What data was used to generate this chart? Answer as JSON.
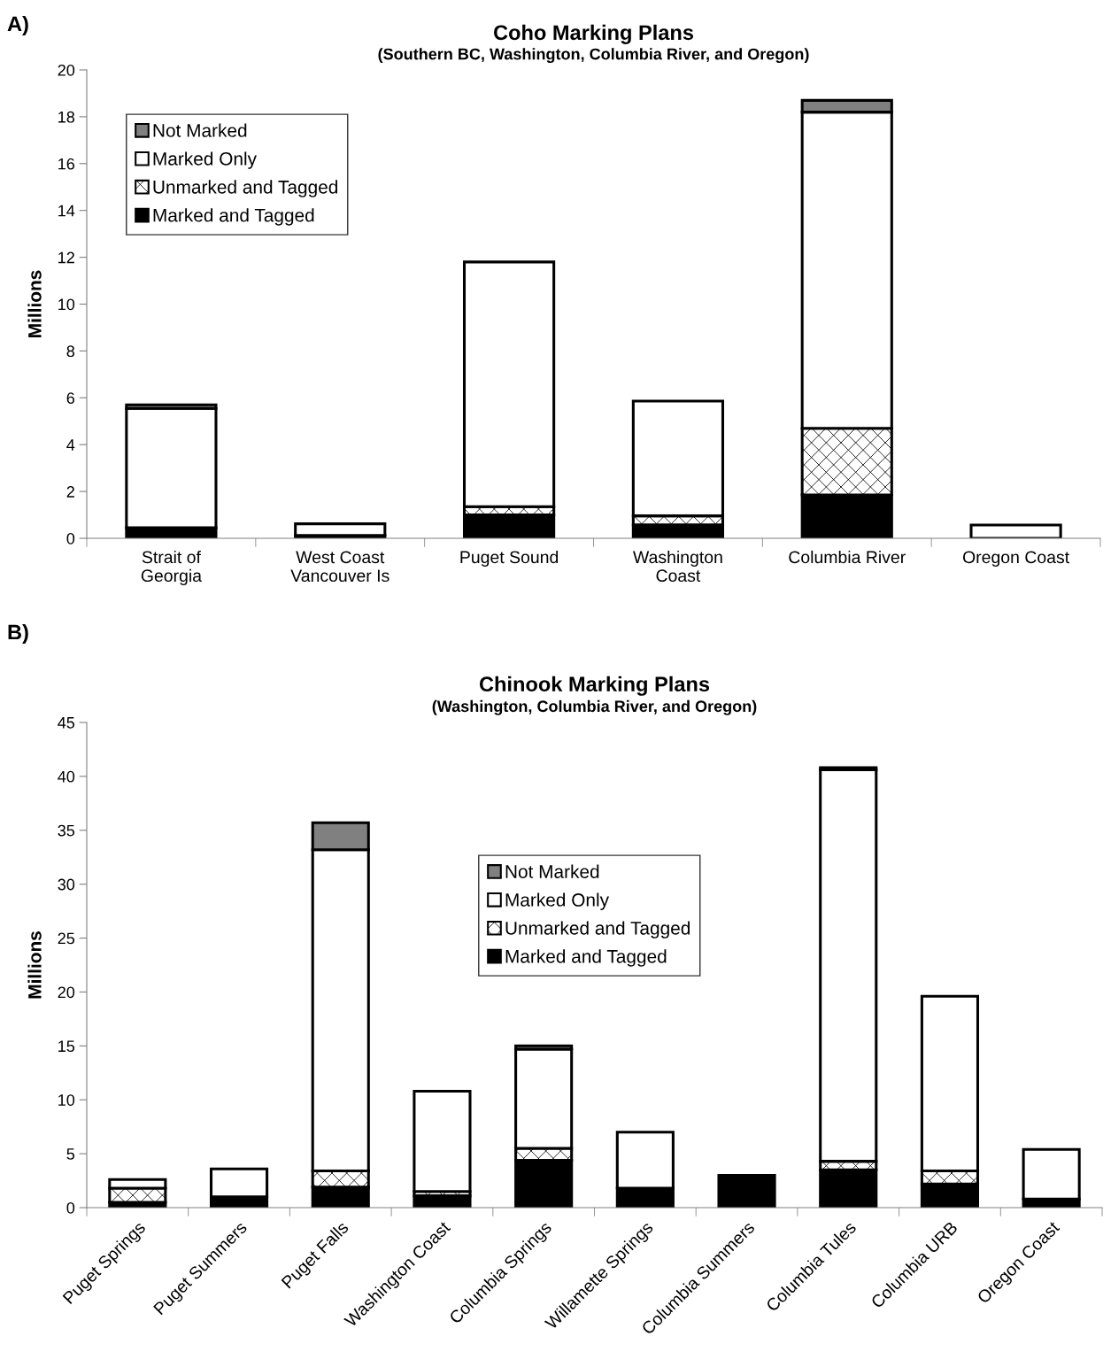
{
  "chart_data": [
    {
      "type": "bar",
      "title": "Coho Marking Plans",
      "subtitle": "(Southern BC, Washington, Columbia River, and Oregon)",
      "ylabel": "Millions",
      "annotations": [
        "A)"
      ],
      "categories": [
        "Strait of\nGeorgia",
        "West Coast\nVancouver Is",
        "Puget Sound",
        "Washington\nCoast",
        "Columbia River",
        "Oregon Coast"
      ],
      "stacked": true,
      "ylim": [
        0,
        20
      ],
      "yticks": [
        0,
        2,
        4,
        6,
        8,
        10,
        12,
        14,
        16,
        18,
        20
      ],
      "grid": false,
      "legend": "top left",
      "series": [
        {
          "name": "Marked and Tagged",
          "color": "#000000",
          "values": [
            0.45,
            0.12,
            1.0,
            0.58,
            1.85,
            null
          ]
        },
        {
          "name": "Unmarked and Tagged",
          "color": "#000000",
          "values": [
            null,
            null,
            0.35,
            0.38,
            2.85,
            null
          ]
        },
        {
          "name": "Marked Only",
          "color": "#ffffff",
          "values": [
            5.1,
            0.5,
            10.45,
            4.9,
            13.5,
            0.57
          ]
        },
        {
          "name": "Not Marked",
          "color": "#808080",
          "values": [
            0.15,
            null,
            null,
            null,
            0.5,
            null
          ]
        }
      ]
    },
    {
      "type": "bar",
      "title": "Chinook Marking Plans",
      "subtitle": "(Washington, Columbia River, and Oregon)",
      "ylabel": "Millions",
      "annotations": [
        "B)"
      ],
      "categories": [
        "Puget Springs",
        "Puget Summers",
        "Puget Falls",
        "Washington Coast",
        "Columbia Springs",
        "Willamette Springs",
        "Columbia Summers",
        "Columbia Tules",
        "Columbia URB",
        "Oregon Coast"
      ],
      "stacked": true,
      "ylim": [
        0,
        45
      ],
      "yticks": [
        0,
        5,
        10,
        15,
        20,
        25,
        30,
        35,
        40,
        45
      ],
      "grid": false,
      "legend": "top",
      "series": [
        {
          "name": "Marked and Tagged",
          "color": "#000000",
          "values": [
            0.5,
            1.0,
            1.9,
            1.1,
            4.4,
            1.8,
            3.0,
            3.5,
            2.2,
            0.8
          ]
        },
        {
          "name": "Unmarked and Tagged",
          "color": "#000000",
          "values": [
            1.3,
            null,
            1.5,
            0.4,
            1.1,
            null,
            null,
            0.8,
            1.2,
            null
          ]
        },
        {
          "name": "Marked Only",
          "color": "#ffffff",
          "values": [
            0.8,
            2.6,
            29.8,
            9.3,
            9.2,
            5.2,
            null,
            36.3,
            16.2,
            4.6
          ]
        },
        {
          "name": "Not Marked",
          "color": "#808080",
          "values": [
            null,
            null,
            2.5,
            null,
            0.3,
            null,
            null,
            0.2,
            null,
            null
          ]
        }
      ]
    }
  ]
}
